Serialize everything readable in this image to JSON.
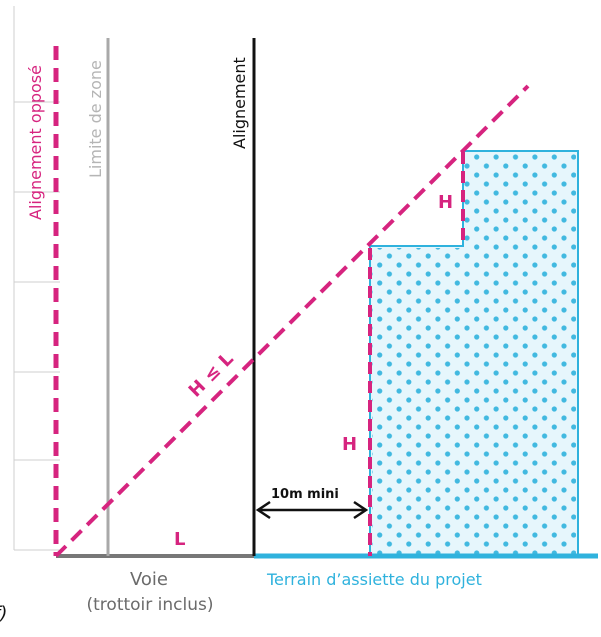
{
  "labels": {
    "alignement_oppose": "Alignement opposé",
    "limite_de_zone": "Limite de zone",
    "alignement": "Alignement",
    "h_le_l": "H ≤ L",
    "h_upper": "H",
    "h_lower": "H",
    "l": "L",
    "ten_m_mini": "10m mini",
    "voie": "Voie",
    "trottoir_inclus": "(trottoir inclus)",
    "terrain": "Terrain d’assiette du projet",
    "corner_glyph": "f)"
  },
  "colors": {
    "magenta": "#d6247f",
    "black": "#111111",
    "grey_line": "#a9a9a9",
    "grid": "#cfcfcf",
    "blue": "#2fb2dd",
    "blue_fill": "#e6f6fc",
    "voie_text": "#6b6b6b"
  }
}
